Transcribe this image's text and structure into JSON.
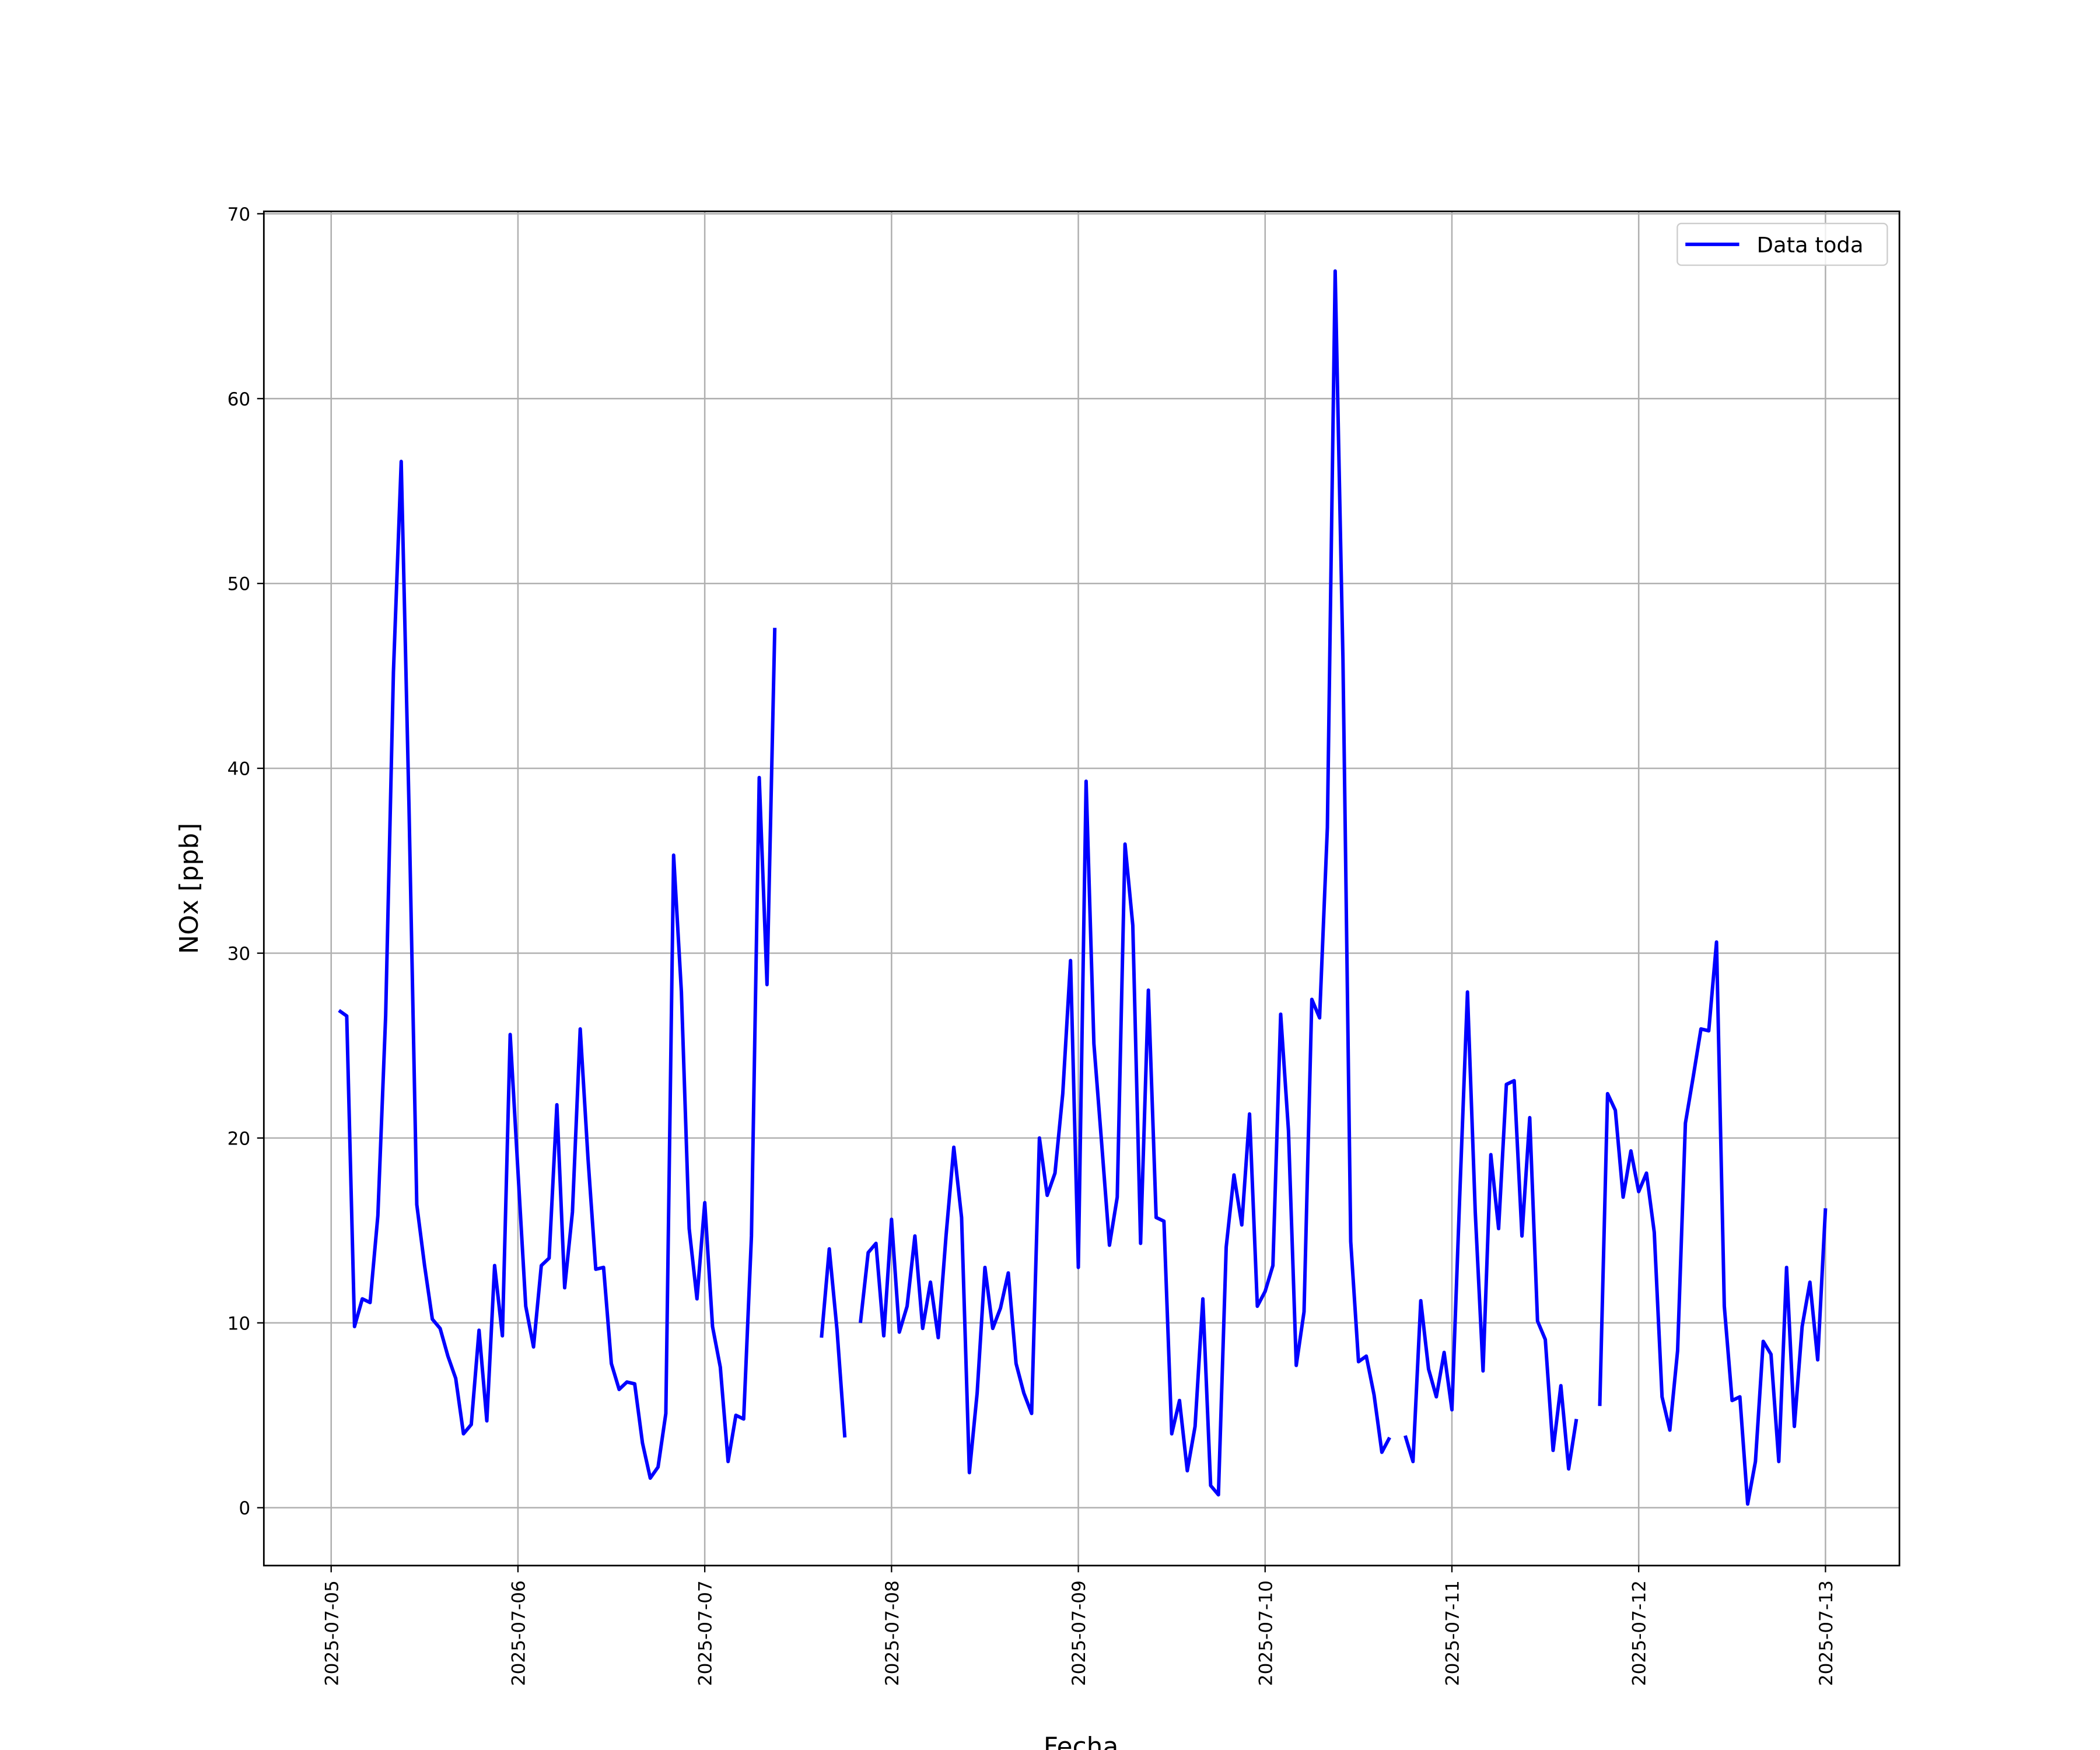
{
  "chart_data": {
    "type": "line",
    "xlabel": "Fecha",
    "ylabel": "NOx [ppb]",
    "x": [
      "2025-07-05 01:00",
      "2025-07-05 02:00",
      "2025-07-05 03:00",
      "2025-07-05 04:00",
      "2025-07-05 05:00",
      "2025-07-05 06:00",
      "2025-07-05 07:00",
      "2025-07-05 08:00",
      "2025-07-05 09:00",
      "2025-07-05 10:00",
      "2025-07-05 11:00",
      "2025-07-05 12:00",
      "2025-07-05 13:00",
      "2025-07-05 14:00",
      "2025-07-05 15:00",
      "2025-07-05 16:00",
      "2025-07-05 17:00",
      "2025-07-05 18:00",
      "2025-07-05 19:00",
      "2025-07-05 20:00",
      "2025-07-05 21:00",
      "2025-07-05 22:00",
      "2025-07-05 23:00",
      "2025-07-06 00:00",
      "2025-07-06 01:00",
      "2025-07-06 02:00",
      "2025-07-06 03:00",
      "2025-07-06 04:00",
      "2025-07-06 05:00",
      "2025-07-06 06:00",
      "2025-07-06 07:00",
      "2025-07-06 08:00",
      "2025-07-06 09:00",
      "2025-07-06 10:00",
      "2025-07-06 11:00",
      "2025-07-06 12:00",
      "2025-07-06 13:00",
      "2025-07-06 14:00",
      "2025-07-06 15:00",
      "2025-07-06 16:00",
      "2025-07-06 17:00",
      "2025-07-06 18:00",
      "2025-07-06 19:00",
      "2025-07-06 20:00",
      "2025-07-06 21:00",
      "2025-07-06 22:00",
      "2025-07-06 23:00",
      "2025-07-07 00:00",
      "2025-07-07 01:00",
      "2025-07-07 02:00",
      "2025-07-07 03:00",
      "2025-07-07 04:00",
      "2025-07-07 05:00",
      "2025-07-07 06:00",
      "2025-07-07 07:00",
      "2025-07-07 08:00",
      "2025-07-07 09:00",
      "2025-07-07 10:00",
      "2025-07-07 11:00",
      "2025-07-07 12:00",
      "2025-07-07 13:00",
      "2025-07-07 14:00",
      "2025-07-07 15:00",
      "2025-07-07 16:00",
      "2025-07-07 17:00",
      "2025-07-07 18:00",
      "2025-07-07 19:00",
      "2025-07-07 20:00",
      "2025-07-07 21:00",
      "2025-07-07 22:00",
      "2025-07-07 23:00",
      "2025-07-08 00:00",
      "2025-07-08 01:00",
      "2025-07-08 02:00",
      "2025-07-08 03:00",
      "2025-07-08 04:00",
      "2025-07-08 05:00",
      "2025-07-08 06:00",
      "2025-07-08 07:00",
      "2025-07-08 08:00",
      "2025-07-08 09:00",
      "2025-07-08 10:00",
      "2025-07-08 11:00",
      "2025-07-08 12:00",
      "2025-07-08 13:00",
      "2025-07-08 14:00",
      "2025-07-08 15:00",
      "2025-07-08 16:00",
      "2025-07-08 17:00",
      "2025-07-08 18:00",
      "2025-07-08 19:00",
      "2025-07-08 20:00",
      "2025-07-08 21:00",
      "2025-07-08 22:00",
      "2025-07-08 23:00",
      "2025-07-09 00:00",
      "2025-07-09 01:00",
      "2025-07-09 02:00",
      "2025-07-09 03:00",
      "2025-07-09 04:00",
      "2025-07-09 05:00",
      "2025-07-09 06:00",
      "2025-07-09 07:00",
      "2025-07-09 08:00",
      "2025-07-09 09:00",
      "2025-07-09 10:00",
      "2025-07-09 11:00",
      "2025-07-09 12:00",
      "2025-07-09 13:00",
      "2025-07-09 14:00",
      "2025-07-09 15:00",
      "2025-07-09 16:00",
      "2025-07-09 17:00",
      "2025-07-09 18:00",
      "2025-07-09 19:00",
      "2025-07-09 20:00",
      "2025-07-09 21:00",
      "2025-07-09 22:00",
      "2025-07-09 23:00",
      "2025-07-10 00:00",
      "2025-07-10 01:00",
      "2025-07-10 02:00",
      "2025-07-10 03:00",
      "2025-07-10 04:00",
      "2025-07-10 05:00",
      "2025-07-10 06:00",
      "2025-07-10 07:00",
      "2025-07-10 08:00",
      "2025-07-10 09:00",
      "2025-07-10 10:00",
      "2025-07-10 11:00",
      "2025-07-10 12:00",
      "2025-07-10 13:00",
      "2025-07-10 14:00",
      "2025-07-10 15:00",
      "2025-07-10 16:00",
      "2025-07-10 17:00",
      "2025-07-10 18:00",
      "2025-07-10 19:00",
      "2025-07-10 20:00",
      "2025-07-10 21:00",
      "2025-07-10 22:00",
      "2025-07-10 23:00",
      "2025-07-11 00:00",
      "2025-07-11 01:00",
      "2025-07-11 02:00",
      "2025-07-11 03:00",
      "2025-07-11 04:00",
      "2025-07-11 05:00",
      "2025-07-11 06:00",
      "2025-07-11 07:00",
      "2025-07-11 08:00",
      "2025-07-11 09:00",
      "2025-07-11 10:00",
      "2025-07-11 11:00",
      "2025-07-11 12:00",
      "2025-07-11 13:00",
      "2025-07-11 14:00",
      "2025-07-11 15:00",
      "2025-07-11 16:00",
      "2025-07-11 17:00",
      "2025-07-11 18:00",
      "2025-07-11 19:00",
      "2025-07-11 20:00",
      "2025-07-11 21:00",
      "2025-07-11 22:00",
      "2025-07-11 23:00",
      "2025-07-12 00:00",
      "2025-07-12 01:00",
      "2025-07-12 02:00",
      "2025-07-12 03:00",
      "2025-07-12 04:00",
      "2025-07-12 05:00",
      "2025-07-12 06:00",
      "2025-07-12 07:00",
      "2025-07-12 08:00",
      "2025-07-12 09:00",
      "2025-07-12 10:00",
      "2025-07-12 11:00",
      "2025-07-12 12:00",
      "2025-07-12 13:00",
      "2025-07-12 14:00",
      "2025-07-12 15:00",
      "2025-07-12 16:00",
      "2025-07-12 17:00",
      "2025-07-12 18:00",
      "2025-07-12 19:00",
      "2025-07-12 20:00",
      "2025-07-12 21:00",
      "2025-07-12 22:00",
      "2025-07-12 23:00",
      "2025-07-13 00:00"
    ],
    "series": [
      {
        "name": "Data toda",
        "color": "#0000ff",
        "values": [
          26.9,
          26.6,
          9.8,
          11.3,
          11.1,
          15.8,
          26.6,
          45.2,
          56.6,
          37.9,
          16.4,
          13.1,
          10.2,
          9.7,
          8.2,
          7.0,
          4.0,
          4.5,
          9.6,
          4.7,
          13.1,
          9.3,
          25.6,
          18.2,
          10.9,
          8.7,
          13.1,
          13.5,
          21.8,
          11.9,
          16.0,
          25.9,
          18.9,
          12.9,
          13.0,
          7.8,
          6.4,
          6.8,
          6.7,
          3.5,
          1.6,
          2.2,
          5.1,
          35.3,
          27.9,
          15.1,
          11.3,
          16.5,
          9.8,
          7.6,
          2.5,
          5.0,
          4.8,
          14.7,
          39.5,
          28.3,
          47.6,
          null,
          null,
          null,
          null,
          null,
          9.2,
          14.0,
          9.6,
          3.8,
          null,
          10.0,
          13.8,
          14.3,
          9.3,
          15.6,
          9.5,
          10.9,
          14.7,
          9.7,
          12.2,
          9.2,
          14.7,
          19.5,
          15.7,
          1.9,
          6.2,
          13.0,
          9.7,
          10.8,
          12.7,
          7.8,
          6.2,
          5.1,
          20.0,
          16.9,
          18.1,
          22.4,
          29.6,
          13.0,
          39.3,
          25.1,
          19.7,
          14.2,
          16.8,
          35.9,
          31.5,
          14.3,
          28.0,
          15.7,
          15.5,
          4.0,
          5.8,
          2.0,
          4.4,
          11.3,
          1.2,
          0.7,
          14.1,
          18.0,
          15.3,
          21.3,
          10.9,
          11.7,
          13.1,
          26.7,
          20.4,
          7.7,
          10.6,
          27.5,
          26.5,
          36.8,
          66.9,
          45.9,
          14.4,
          7.9,
          8.2,
          6.1,
          3.0,
          3.8,
          null,
          3.9,
          2.5,
          11.2,
          7.5,
          6.0,
          8.4,
          5.3,
          16.8,
          27.9,
          16.0,
          7.4,
          19.1,
          15.1,
          22.9,
          23.1,
          14.7,
          21.1,
          10.1,
          9.1,
          3.1,
          6.6,
          2.1,
          4.8,
          null,
          null,
          5.5,
          22.4,
          21.5,
          16.8,
          19.3,
          17.1,
          18.1,
          14.9,
          6.0,
          4.2,
          8.5,
          20.8,
          23.3,
          25.9,
          25.8,
          30.6,
          10.9,
          5.8,
          6.0,
          0.2,
          2.5,
          9.0,
          8.3,
          2.5,
          13.0,
          4.4,
          9.8,
          12.2,
          8.0,
          16.2
        ]
      }
    ],
    "xlim": [
      "2025-07-04 15:21",
      "2025-07-13 09:30"
    ],
    "xticks": [
      "2025-07-05",
      "2025-07-06",
      "2025-07-07",
      "2025-07-08",
      "2025-07-09",
      "2025-07-10",
      "2025-07-11",
      "2025-07-12",
      "2025-07-13"
    ],
    "ylim": [
      -3.13,
      70.13
    ],
    "yticks": [
      0,
      10,
      20,
      30,
      40,
      50,
      60,
      70
    ],
    "grid": true,
    "legend": "upper right"
  }
}
